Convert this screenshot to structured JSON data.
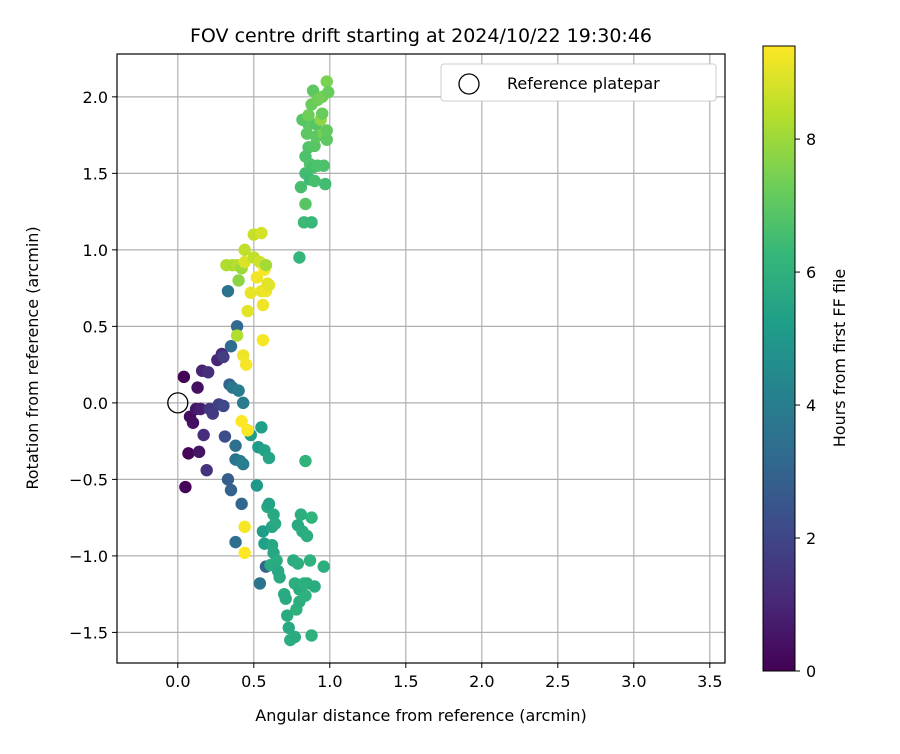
{
  "chart_data": {
    "type": "scatter",
    "title": "FOV centre drift starting at 2024/10/22 19:30:46",
    "xlabel": "Angular distance from reference (arcmin)",
    "ylabel": "Rotation from reference (arcmin)",
    "xlim": [
      -0.4,
      3.6
    ],
    "ylim": [
      -1.7,
      2.28
    ],
    "xticks": [
      0.0,
      0.5,
      1.0,
      1.5,
      2.0,
      2.5,
      3.0,
      3.5
    ],
    "xtick_labels": [
      "0.0",
      "0.5",
      "1.0",
      "1.5",
      "2.0",
      "2.5",
      "3.0",
      "3.5"
    ],
    "yticks": [
      -1.5,
      -1.0,
      -0.5,
      0.0,
      0.5,
      1.0,
      1.5,
      2.0
    ],
    "ytick_labels": [
      "−1.5",
      "−1.0",
      "−0.5",
      "0.0",
      "0.5",
      "1.0",
      "1.5",
      "2.0"
    ],
    "grid": true,
    "legend": {
      "position": "top-right",
      "entries": [
        "Reference platepar"
      ]
    },
    "reference_point": {
      "x": 0.0,
      "y": 0.0,
      "label": "Reference platepar"
    },
    "colorbar": {
      "label": "Hours from first FF file",
      "min": 0,
      "max": 9.4,
      "ticks": [
        0,
        2,
        4,
        6,
        8
      ],
      "tick_labels": [
        "0",
        "2",
        "4",
        "6",
        "8"
      ],
      "colormap": "viridis",
      "colors": [
        "#440154",
        "#482878",
        "#3e4989",
        "#31688e",
        "#26828e",
        "#1f9e89",
        "#35b779",
        "#6ece58",
        "#b5de2b",
        "#fde725"
      ]
    },
    "series": [
      {
        "points": [
          [
            0.04,
            0.17,
            0.05
          ],
          [
            0.05,
            -0.55,
            0.05
          ],
          [
            0.07,
            -0.33,
            0.1
          ],
          [
            0.08,
            -0.09,
            0.3
          ],
          [
            0.1,
            -0.13,
            0.35
          ],
          [
            0.12,
            -0.04,
            0.6
          ],
          [
            0.13,
            0.1,
            0.4
          ],
          [
            0.15,
            -0.04,
            0.8
          ],
          [
            0.14,
            -0.32,
            0.5
          ],
          [
            0.16,
            0.21,
            1.0
          ],
          [
            0.17,
            -0.21,
            1.2
          ],
          [
            0.19,
            -0.44,
            1.4
          ],
          [
            0.2,
            0.2,
            1.3
          ],
          [
            0.21,
            -0.04,
            1.5
          ],
          [
            0.23,
            -0.07,
            1.6
          ],
          [
            0.26,
            0.28,
            1.0
          ],
          [
            0.27,
            -0.01,
            1.8
          ],
          [
            0.29,
            0.32,
            1.1
          ],
          [
            0.3,
            0.3,
            1.7
          ],
          [
            0.3,
            -0.02,
            2.1
          ],
          [
            0.31,
            -0.22,
            2.2
          ],
          [
            0.33,
            0.73,
            3.6
          ],
          [
            0.33,
            -0.5,
            2.8
          ],
          [
            0.34,
            0.12,
            3.0
          ],
          [
            0.35,
            -0.57,
            2.9
          ],
          [
            0.35,
            0.37,
            3.3
          ],
          [
            0.36,
            0.1,
            3.7
          ],
          [
            0.38,
            -0.91,
            3.4
          ],
          [
            0.38,
            -0.28,
            3.5
          ],
          [
            0.39,
            0.5,
            3.2
          ],
          [
            0.38,
            -0.37,
            3.6
          ],
          [
            0.4,
            0.08,
            3.9
          ],
          [
            0.41,
            -0.38,
            3.8
          ],
          [
            0.42,
            -0.66,
            3.1
          ],
          [
            0.43,
            -0.4,
            4.0
          ],
          [
            0.43,
            -0.0,
            3.9
          ],
          [
            0.46,
            -0.18,
            4.5
          ],
          [
            0.48,
            -0.21,
            5.2
          ],
          [
            0.52,
            -0.54,
            5.0
          ],
          [
            0.53,
            -0.29,
            5.1
          ],
          [
            0.55,
            -0.16,
            5.3
          ],
          [
            0.56,
            -0.84,
            5.2
          ],
          [
            0.57,
            -0.31,
            5.4
          ],
          [
            0.57,
            -0.92,
            5.3
          ],
          [
            0.58,
            -1.07,
            3.0
          ],
          [
            0.59,
            -0.68,
            5.6
          ],
          [
            0.6,
            -0.36,
            5.5
          ],
          [
            0.6,
            -0.66,
            5.4
          ],
          [
            0.61,
            -1.06,
            5.8
          ],
          [
            0.62,
            -0.81,
            5.5
          ],
          [
            0.62,
            -0.93,
            5.6
          ],
          [
            0.63,
            -0.73,
            5.7
          ],
          [
            0.63,
            -0.98,
            5.6
          ],
          [
            0.64,
            -0.79,
            5.7
          ],
          [
            0.65,
            -1.03,
            5.8
          ],
          [
            0.66,
            -1.1,
            5.6
          ],
          [
            0.67,
            -1.14,
            5.7
          ],
          [
            0.7,
            -1.25,
            5.8
          ],
          [
            0.71,
            -1.28,
            5.7
          ],
          [
            0.72,
            -1.39,
            5.8
          ],
          [
            0.73,
            -1.47,
            5.7
          ],
          [
            0.74,
            -1.55,
            5.9
          ],
          [
            0.76,
            -1.03,
            5.8
          ],
          [
            0.77,
            -1.18,
            5.9
          ],
          [
            0.77,
            -1.53,
            5.8
          ],
          [
            0.78,
            -1.35,
            6.0
          ],
          [
            0.79,
            -0.8,
            5.7
          ],
          [
            0.79,
            -1.05,
            5.9
          ],
          [
            0.8,
            -1.22,
            5.8
          ],
          [
            0.8,
            -1.3,
            5.9
          ],
          [
            0.81,
            -0.73,
            5.9
          ],
          [
            0.82,
            -0.84,
            5.8
          ],
          [
            0.83,
            -1.18,
            6.0
          ],
          [
            0.84,
            -1.26,
            6.0
          ],
          [
            0.85,
            -0.87,
            5.9
          ],
          [
            0.85,
            -1.18,
            5.9
          ],
          [
            0.84,
            -0.38,
            6.1
          ],
          [
            0.87,
            -1.03,
            6.0
          ],
          [
            0.88,
            -0.75,
            6.1
          ],
          [
            0.88,
            -1.52,
            6.0
          ],
          [
            0.9,
            -1.2,
            5.8
          ],
          [
            0.96,
            -1.07,
            5.9
          ],
          [
            0.54,
            -1.18,
            3.6
          ],
          [
            0.8,
            0.95,
            6.2
          ],
          [
            0.81,
            1.41,
            6.6
          ],
          [
            0.83,
            1.18,
            6.4
          ],
          [
            0.84,
            1.3,
            6.9
          ],
          [
            0.84,
            1.5,
            6.5
          ],
          [
            0.86,
            1.67,
            6.8
          ],
          [
            0.86,
            1.82,
            7.0
          ],
          [
            0.87,
            1.46,
            6.4
          ],
          [
            0.87,
            1.56,
            6.8
          ],
          [
            0.88,
            1.18,
            6.3
          ],
          [
            0.88,
            1.95,
            7.2
          ],
          [
            0.89,
            2.04,
            7.0
          ],
          [
            0.89,
            1.54,
            6.6
          ],
          [
            0.9,
            1.68,
            6.9
          ],
          [
            0.9,
            1.45,
            6.6
          ],
          [
            0.91,
            1.74,
            7.0
          ],
          [
            0.91,
            1.82,
            6.9
          ],
          [
            0.92,
            1.98,
            7.3
          ],
          [
            0.92,
            1.55,
            6.7
          ],
          [
            0.94,
            1.85,
            7.8
          ],
          [
            0.95,
            1.89,
            7.2
          ],
          [
            0.95,
            2.0,
            7.4
          ],
          [
            0.96,
            1.76,
            7.4
          ],
          [
            0.96,
            1.55,
            6.7
          ],
          [
            0.97,
            1.43,
            6.5
          ],
          [
            0.98,
            1.72,
            7.0
          ],
          [
            0.98,
            2.1,
            7.5
          ],
          [
            0.98,
            1.78,
            7.1
          ],
          [
            0.99,
            2.03,
            7.2
          ],
          [
            0.82,
            1.85,
            6.9
          ],
          [
            0.84,
            1.61,
            6.7
          ],
          [
            0.85,
            1.76,
            7.0
          ],
          [
            0.86,
            1.88,
            7.3
          ],
          [
            0.32,
            0.9,
            8.3
          ],
          [
            0.36,
            0.9,
            8.2
          ],
          [
            0.39,
            0.9,
            8.4
          ],
          [
            0.4,
            0.8,
            7.8
          ],
          [
            0.42,
            0.88,
            8.0
          ],
          [
            0.44,
            1.0,
            8.5
          ],
          [
            0.44,
            0.92,
            8.9
          ],
          [
            0.46,
            0.6,
            9.0
          ],
          [
            0.48,
            0.72,
            9.1
          ],
          [
            0.5,
            0.95,
            8.5
          ],
          [
            0.5,
            1.1,
            8.6
          ],
          [
            0.52,
            0.82,
            9.2
          ],
          [
            0.54,
            0.92,
            8.7
          ],
          [
            0.55,
            1.11,
            8.8
          ],
          [
            0.55,
            0.73,
            9.1
          ],
          [
            0.56,
            0.64,
            9.2
          ],
          [
            0.57,
            0.87,
            9.3
          ],
          [
            0.58,
            0.73,
            9.2
          ],
          [
            0.59,
            0.78,
            9.1
          ],
          [
            0.6,
            0.77,
            9.0
          ],
          [
            0.56,
            0.41,
            9.3
          ],
          [
            0.43,
            0.31,
            9.2
          ],
          [
            0.45,
            0.25,
            9.3
          ],
          [
            0.42,
            -0.12,
            9.4
          ],
          [
            0.46,
            -0.18,
            9.4
          ],
          [
            0.44,
            -0.81,
            9.3
          ],
          [
            0.44,
            -0.98,
            9.4
          ],
          [
            0.39,
            0.44,
            8.3
          ],
          [
            0.58,
            0.9,
            8.1
          ]
        ]
      }
    ]
  }
}
